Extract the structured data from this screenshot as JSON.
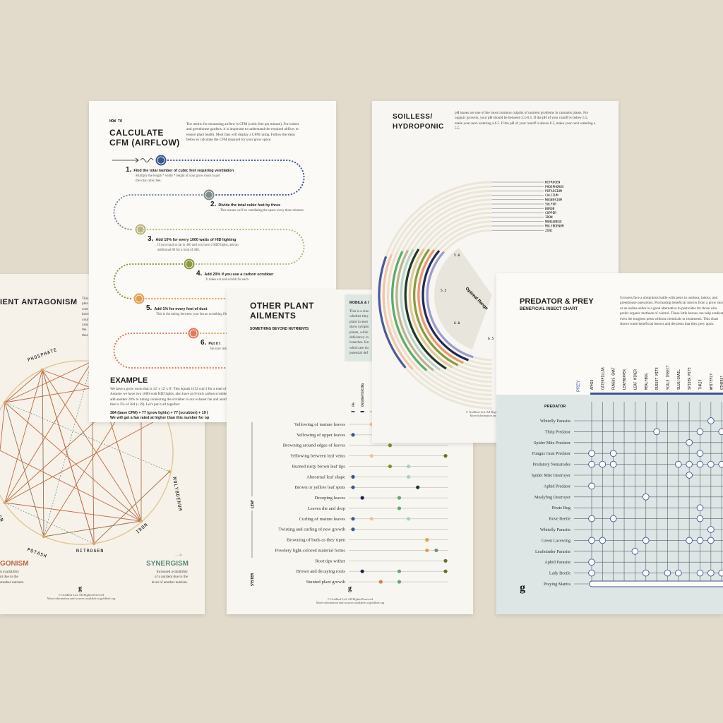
{
  "background_color": "#e2dbcc",
  "antagonism": {
    "title": "IENT ANTAGONISM",
    "legend_left_title": "GONISM",
    "legend_left_text": [
      "d availability",
      "nt due to the",
      "another nutrient."
    ],
    "legend_right_arrow": "···>",
    "legend_right_title": "SYNERGISM",
    "legend_right_text": [
      "Increased availability",
      "of a nutrient due to the",
      "level of another nutrient."
    ],
    "side_text": [
      "This",
      "plan",
      "com",
      "have",
      "your",
      "caus",
      "the",
      "thos"
    ],
    "nodes": [
      "PHOSPHATE",
      "PER",
      "MAGN",
      "POTASH",
      "NITROGEN",
      "IRON",
      "MOLYBDENUM"
    ],
    "logo": "g",
    "footer": [
      "© Goldleaf Ltd, All Rights Reserved",
      "More information and sources available at goldleaf.org"
    ],
    "colors": {
      "antagonism": "#c0683f",
      "synergism": "#5b8a7a",
      "ring": "#e3c99a"
    }
  },
  "cfm": {
    "pretitle": "HOW TO",
    "title": [
      "CALCULATE",
      "CFM (AIRFLOW)"
    ],
    "intro": "The metric for measuring airflow is CFM (cubic feet per minute). For indoor and greenhouse gardens, it is important to understand the required airflow to ensure plant health. Most fans will display a CFM rating. Follow the steps below to calculate the CFM required for your grow space.",
    "steps": [
      {
        "num": "1.",
        "title": "Find the total number of cubic feet requiring ventilation",
        "desc": "Multiply the length * width * height of your grow room to get the total cubic feet.",
        "color": "#3e5592",
        "icon": "cube-icon"
      },
      {
        "num": "2.",
        "title": "Divide the total cubic feet by three",
        "desc": "This means we'll be ventilating the space every three minutes.",
        "color": "#7f8d8a",
        "icon": "divide-icon"
      },
      {
        "num": "3.",
        "title": "Add 10% for every 1000 watts of HID lighting",
        "desc": "If your total so far is 400 and you have 2 HID lights, add an additional 80 for a total of 480.",
        "color": "#b9b67f",
        "icon": "percent-icon"
      },
      {
        "num": "4.",
        "title": "Add 20% if you use a carbon scrubber",
        "desc": "It takes ext and scrubb for each.",
        "color": "#8a9a3c",
        "icon": "scrubber-icon"
      },
      {
        "num": "5.",
        "title": "Add 1% for every foot of duct",
        "desc": "This is the tubing between your fan an scrubbing filter.",
        "color": "#e0a050",
        "icon": "duct-icon"
      },
      {
        "num": "6.",
        "title": "Put it t",
        "desc": "Be sure rating h",
        "color": "#e07c5a",
        "icon": "fan-icon"
      }
    ],
    "example_title": "EXAMPLE",
    "example_text": "We have a grow room that is 12' x 12' x 8'. This equals 1152 cub 3 for a total of 384. Assume we have two 1000-watt HID lights, also have an 8-inch carbon scrubber, so we'll add another 20% to tubing connecting the scrubber to our exhaust fan and another 6 foot, that is 5% of 384 (+19). Let's put it all together:",
    "example_formula": "384 (base CFM) + 77 (grow lights) + 77 (scrubber) + 19 (",
    "example_conclusion": "We will get a fan rated at higher than this number for op"
  },
  "ailments": {
    "title": [
      "OTHER PLANT",
      "AILMENTS"
    ],
    "subtitle": "SOMETHING BEYOND NUTRIENTS",
    "sidebar_title": "MOBILE & I",
    "sidebar_text": [
      "This is a clas",
      "whether they",
      "plant to anot",
      "show sympto",
      "plants, while",
      "deficiency in",
      "branches. Kn",
      "which are im",
      "potential def"
    ],
    "columns": [
      {
        "label": "PH",
        "color": "#3e5592"
      },
      {
        "label": "OVERWATERING",
        "color": "#1e2450"
      },
      {
        "label": "",
        "color": "#f2c09e"
      },
      {
        "label": "",
        "color": "#e07a4a"
      },
      {
        "label": "",
        "color": "#8a8a2a"
      },
      {
        "label": "",
        "color": "#5aac6a"
      },
      {
        "label": "",
        "color": "#a8cfc6"
      },
      {
        "label": "",
        "color": "#1f3a24"
      },
      {
        "label": "",
        "color": "#e0a050"
      },
      {
        "label": "",
        "color": "#6f8f86"
      },
      {
        "label": "",
        "color": "#6a7024"
      }
    ],
    "groups": [
      "LEAF",
      "SYSTEM"
    ],
    "rows": [
      {
        "label": "Yellowing of mature leaves",
        "cols": [
          2
        ]
      },
      {
        "label": "Yellowing of upper leaves",
        "cols": [
          0
        ]
      },
      {
        "label": "Browning around edges of leaves",
        "cols": [
          4
        ]
      },
      {
        "label": "Yellowing between leaf veins",
        "cols": [
          2,
          10
        ]
      },
      {
        "label": "Burned rusty brown leaf tips",
        "cols": [
          4,
          6
        ]
      },
      {
        "label": "Abnormal leaf shape",
        "cols": [
          0,
          6
        ]
      },
      {
        "label": "Brown or yellow leaf spots",
        "cols": [
          0,
          7
        ]
      },
      {
        "label": "Drooping leaves",
        "cols": [
          1,
          5
        ]
      },
      {
        "label": "Leaves die and drop",
        "cols": [
          5
        ]
      },
      {
        "label": "Curling of mature leaves",
        "cols": [
          0,
          2,
          6
        ]
      },
      {
        "label": "Twisting and curling of new growth",
        "cols": [
          0
        ]
      },
      {
        "label": "Browning of buds as they ripen",
        "cols": [
          8
        ]
      },
      {
        "label": "Powdery light-colored material forms",
        "cols": [
          8,
          9
        ]
      },
      {
        "label": "Root tips wither",
        "cols": [
          10
        ]
      },
      {
        "label": "Brown and decaying roots",
        "cols": [
          1,
          5,
          10
        ]
      },
      {
        "label": "Stunted plant growth",
        "cols": [
          3,
          5
        ]
      }
    ],
    "logo": "g",
    "footer": [
      "© Goldleaf Ltd, All Rights Reserved",
      "More information and sources available at goldleaf.org"
    ]
  },
  "soilless": {
    "title": [
      "SOILLESS/",
      "HYDROPONIC"
    ],
    "intro": "pH issues are one of the most common culprits of nutrient problems in cannabis plants. For organic growers, your pH should be between 5.5-6.5. If the pH of your runoff is below 5.5, make your next watering a 6.5. If the pH of your runoff is above 6.5, make your next watering a 5.5.",
    "nutrients": [
      {
        "name": "NITROGEN",
        "color": "#4a5a9a"
      },
      {
        "name": "PHOSPHORUS",
        "color": "#f2c4a6"
      },
      {
        "name": "POTASSIUM",
        "color": "#f0dcc8"
      },
      {
        "name": "CALCIUM",
        "color": "#5aac6a"
      },
      {
        "name": "MAGNESIUM",
        "color": "#b8b68a"
      },
      {
        "name": "SULFUR",
        "color": "#b9d4cc"
      },
      {
        "name": "BORON",
        "color": "#1f3a24"
      },
      {
        "name": "COPPER",
        "color": "#e2c99a"
      },
      {
        "name": "IRON",
        "color": "#8a9a3c"
      },
      {
        "name": "MANGANESE",
        "color": "#e89a6a"
      },
      {
        "name": "MOLYBDENUM",
        "color": "#23285a"
      },
      {
        "name": "ZINC",
        "color": "#9a9ccc"
      }
    ],
    "ph_labels": [
      "5.0",
      "5.5",
      "6.0",
      "6.5"
    ],
    "optimal_label": "Optimal Range",
    "footer": [
      "© Goldleaf Ltd, All Rights Reserved",
      "More information and sources"
    ]
  },
  "predator": {
    "title": "PREDATOR & PREY",
    "subtitle": "BENEFICIAL INSECT CHART",
    "intro": "Growers face a ubiquitous battle with pests in outdoor, indoor, and greenhouse operations. Purchasing beneficial insects from a grow store or an online seller is a good alternative to pesticides for those who prefer organic methods of control. These little heroes can help eradicate even the toughest pests without chemicals or treatments. This chart shows some beneficial insects and the pests that they prey upon.",
    "prey_header": "PREY",
    "predator_header": "PREDATOR",
    "prey": [
      "APHID",
      "CATERPILLAR",
      "FUNGUS GNAT",
      "LEAFHOPPER",
      "LEAF MINER",
      "MEALYBUG",
      "RUSSET MITE",
      "SCALE INSECT",
      "SLUG/SNAIL",
      "SPIDER MITE",
      "THRIP",
      "WHITEFLY",
      "OTHERS*"
    ],
    "predators": [
      {
        "name": "Whitefly Parasite",
        "prey": [
          11
        ]
      },
      {
        "name": "Thrip Predator",
        "prey": [
          6,
          10,
          12
        ]
      },
      {
        "name": "Spider Mite Predator",
        "prey": [
          9
        ]
      },
      {
        "name": "Fungus Gnat Predator",
        "prey": [
          0,
          2,
          10
        ]
      },
      {
        "name": "Predatory Nematodes",
        "prey": [
          0,
          1,
          2,
          8,
          9,
          10,
          11,
          12
        ]
      },
      {
        "name": "Spider Mite Destroyer",
        "prey": [
          9
        ]
      },
      {
        "name": "Aphid Predator",
        "prey": [
          0
        ]
      },
      {
        "name": "Mealybug Destroyer",
        "prey": [
          5
        ]
      },
      {
        "name": "Pirate Bug",
        "prey": [
          10
        ]
      },
      {
        "name": "Rove Beetle",
        "prey": [
          0,
          2,
          10
        ]
      },
      {
        "name": "Whitefly Parasite",
        "prey": [
          11
        ]
      },
      {
        "name": "Green Lacewing",
        "prey": [
          0,
          1,
          5,
          9,
          10,
          11
        ]
      },
      {
        "name": "Leafminder Parasite",
        "prey": [
          4
        ]
      },
      {
        "name": "Aphid Parasite",
        "prey": [
          0
        ]
      },
      {
        "name": "Lady Beetle",
        "prey": [
          0,
          5,
          7,
          8,
          10,
          11,
          12
        ]
      },
      {
        "name": "Praying Mantis",
        "prey": "all"
      }
    ],
    "logo": "g",
    "colors": {
      "accent": "#3e5592",
      "chart_bg": "#dde6e4"
    }
  }
}
